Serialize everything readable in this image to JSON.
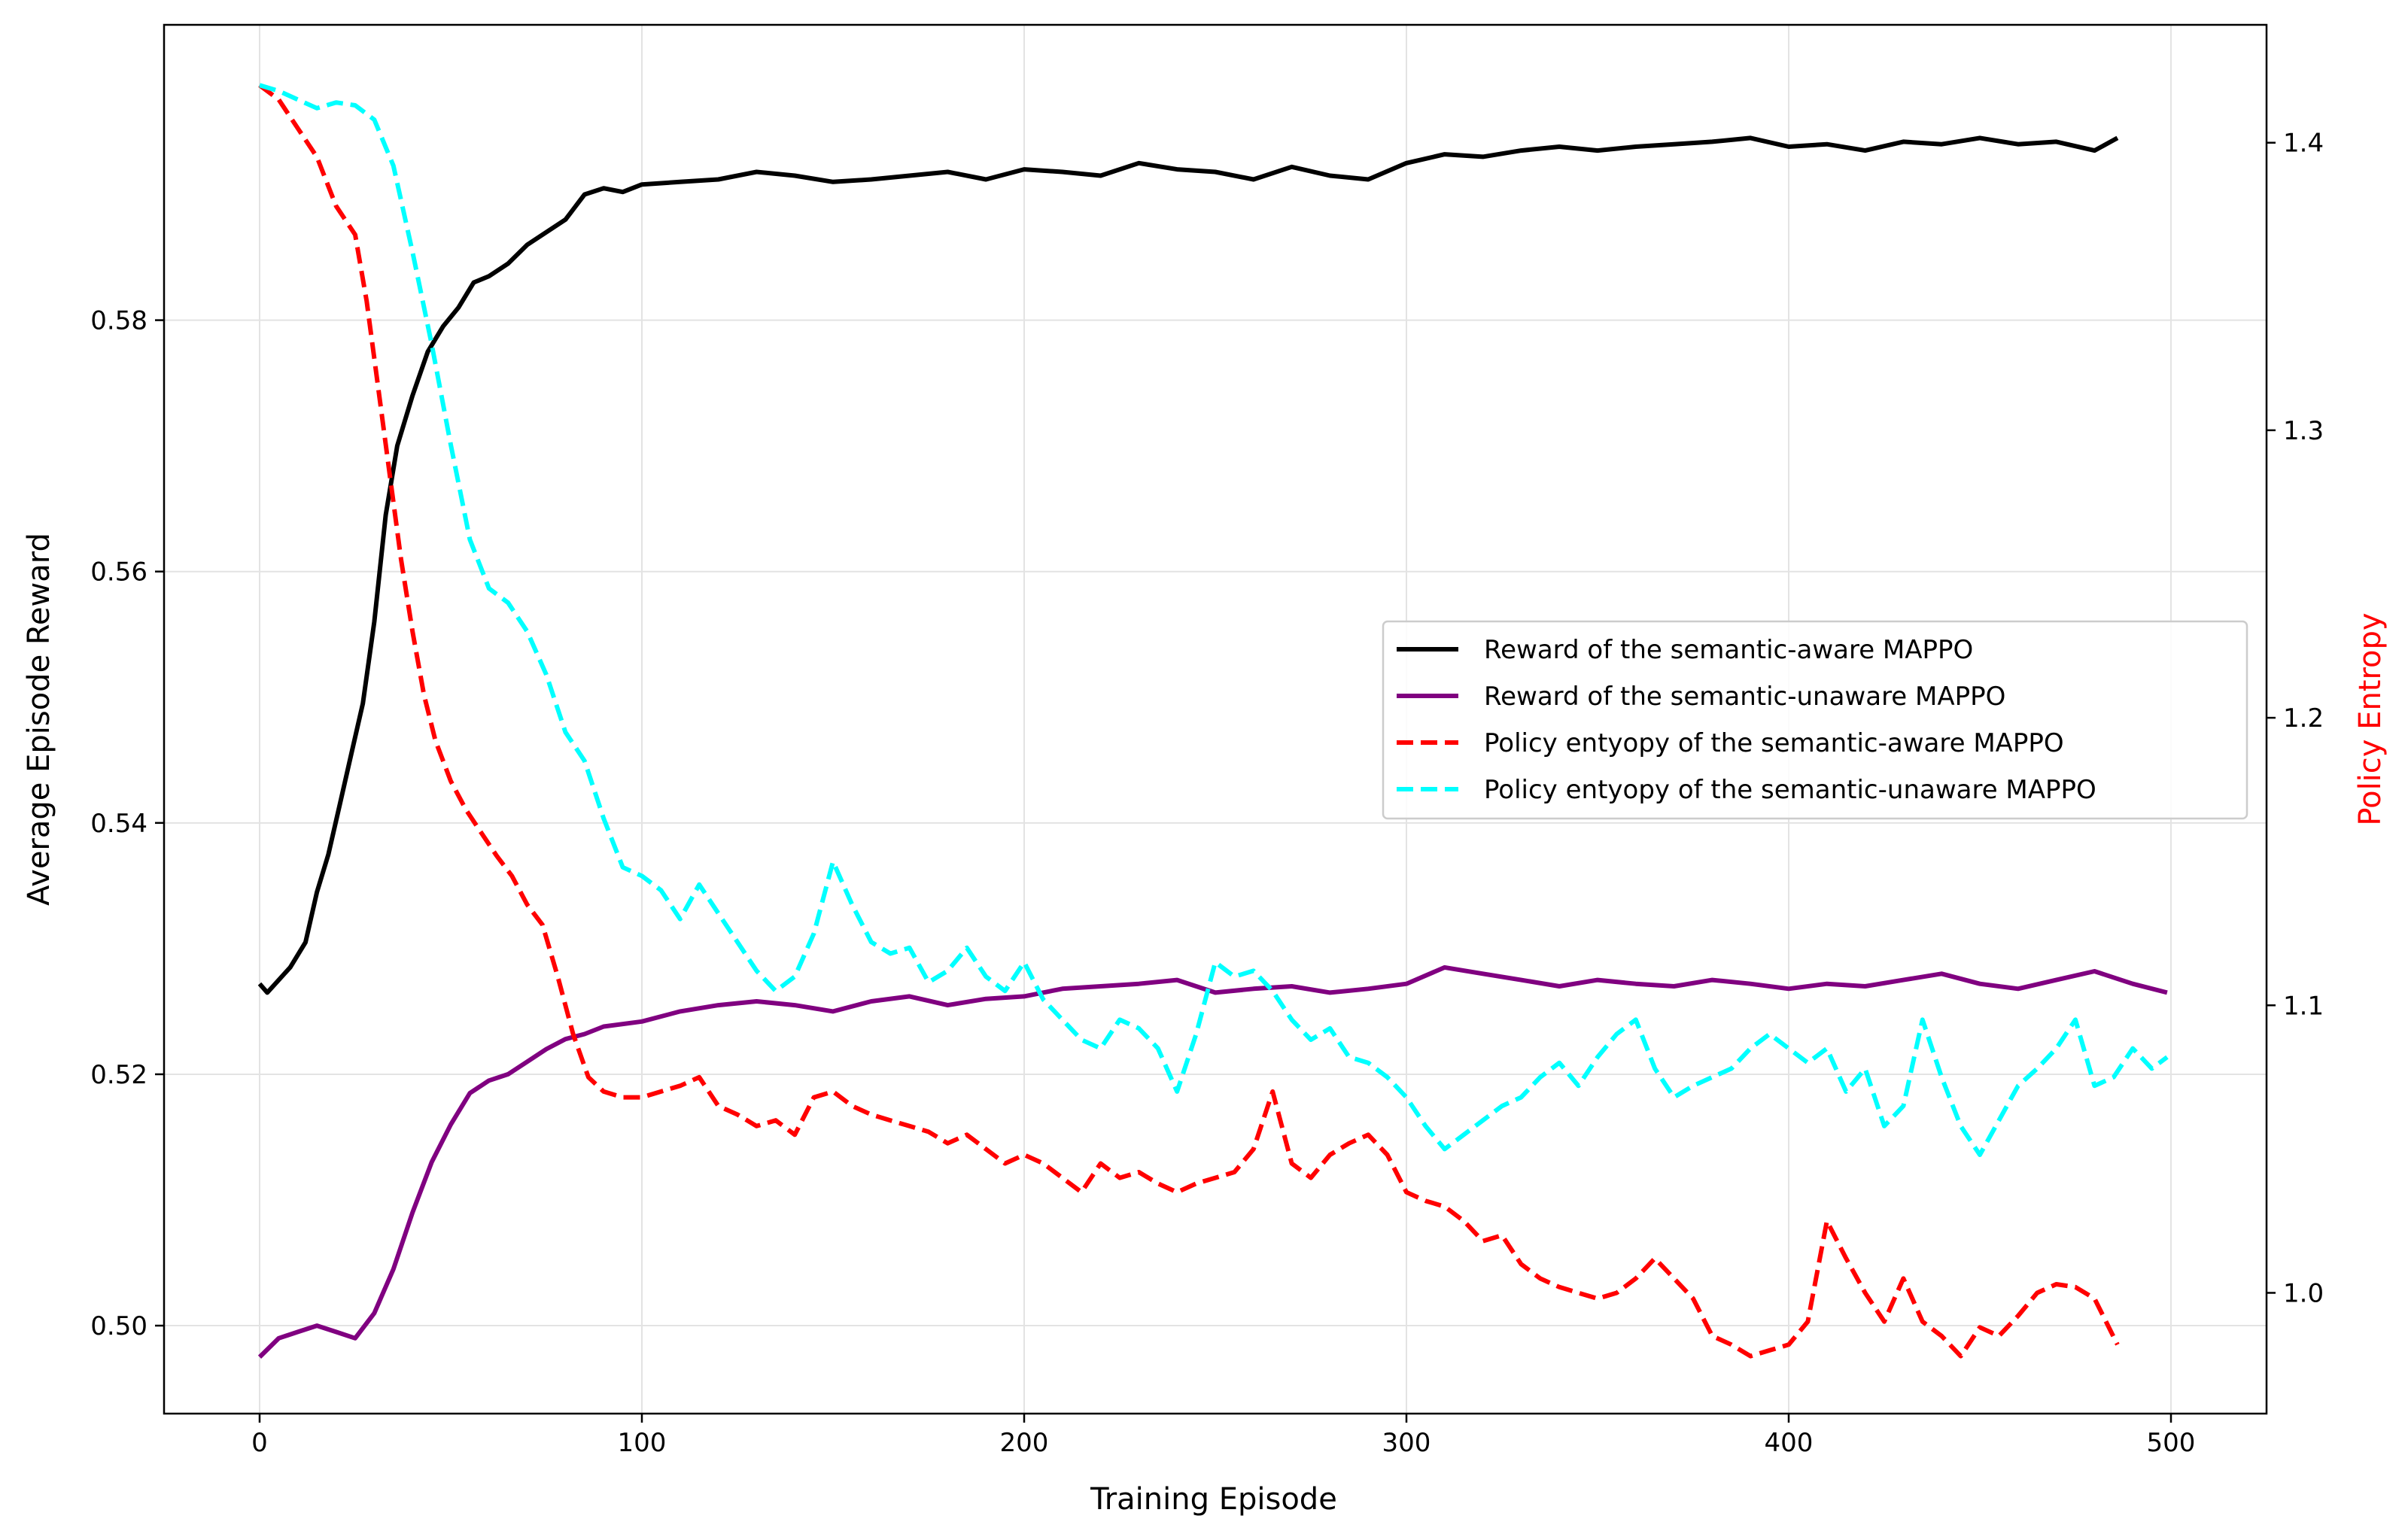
{
  "chart_data": {
    "type": "line",
    "title": "",
    "xlabel": "Training Episode",
    "ylabel_left": "Average Episode Reward",
    "ylabel_right": "Policy Entropy",
    "ylabel_right_color": "#ff0000",
    "xlim": [
      -25,
      525
    ],
    "ylim_left": [
      0.493,
      0.6035
    ],
    "ylim_right": [
      0.958,
      1.441
    ],
    "x_ticks": [
      0,
      100,
      200,
      300,
      400,
      500
    ],
    "x_tick_labels": [
      "0",
      "100",
      "200",
      "300",
      "400",
      "500"
    ],
    "y_left_ticks": [
      0.5,
      0.52,
      0.54,
      0.56,
      0.58
    ],
    "y_left_tick_labels": [
      "0.50",
      "0.52",
      "0.54",
      "0.56",
      "0.58"
    ],
    "y_right_ticks": [
      1.0,
      1.1,
      1.2,
      1.3,
      1.4
    ],
    "y_right_tick_labels": [
      "1.0",
      "1.1",
      "1.2",
      "1.3",
      "1.4"
    ],
    "grid": true,
    "legend_position": "center-right",
    "series": [
      {
        "name": "Reward of the semantic-aware MAPPO",
        "axis": "left",
        "color": "#000000",
        "dash": "solid",
        "x": [
          0,
          2,
          5,
          8,
          12,
          15,
          18,
          21,
          24,
          27,
          30,
          33,
          36,
          40,
          44,
          48,
          52,
          56,
          60,
          65,
          70,
          75,
          80,
          85,
          90,
          95,
          100,
          110,
          120,
          130,
          140,
          150,
          160,
          170,
          180,
          190,
          200,
          210,
          220,
          230,
          240,
          250,
          260,
          270,
          280,
          290,
          300,
          310,
          320,
          330,
          340,
          350,
          360,
          370,
          380,
          390,
          400,
          410,
          420,
          430,
          440,
          450,
          460,
          470,
          480,
          486
        ],
        "y": [
          0.5272,
          0.5265,
          0.5275,
          0.5285,
          0.5305,
          0.5345,
          0.5375,
          0.5415,
          0.5455,
          0.5495,
          0.556,
          0.5645,
          0.57,
          0.574,
          0.5775,
          0.5795,
          0.581,
          0.583,
          0.5835,
          0.5845,
          0.586,
          0.587,
          0.588,
          0.59,
          0.5905,
          0.5902,
          0.5908,
          0.591,
          0.5912,
          0.5918,
          0.5915,
          0.591,
          0.5912,
          0.5915,
          0.5918,
          0.5912,
          0.592,
          0.5918,
          0.5915,
          0.5925,
          0.592,
          0.5918,
          0.5912,
          0.5922,
          0.5915,
          0.5912,
          0.5925,
          0.5932,
          0.593,
          0.5935,
          0.5938,
          0.5935,
          0.5938,
          0.594,
          0.5942,
          0.5945,
          0.5938,
          0.594,
          0.5935,
          0.5942,
          0.594,
          0.5945,
          0.594,
          0.5942,
          0.5935,
          0.5945
        ]
      },
      {
        "name": "Reward of the semantic-unaware MAPPO",
        "axis": "left",
        "color": "#800080",
        "dash": "solid",
        "x": [
          0,
          5,
          10,
          15,
          20,
          25,
          30,
          35,
          40,
          45,
          50,
          55,
          60,
          65,
          70,
          75,
          80,
          85,
          90,
          100,
          110,
          120,
          130,
          140,
          150,
          160,
          170,
          180,
          190,
          200,
          210,
          220,
          230,
          240,
          250,
          260,
          270,
          280,
          290,
          300,
          310,
          320,
          330,
          340,
          350,
          360,
          370,
          380,
          390,
          400,
          410,
          420,
          430,
          440,
          450,
          460,
          470,
          480,
          490,
          499
        ],
        "y": [
          0.4975,
          0.499,
          0.4995,
          0.5,
          0.4995,
          0.499,
          0.501,
          0.5045,
          0.509,
          0.513,
          0.516,
          0.5185,
          0.5195,
          0.52,
          0.521,
          0.522,
          0.5228,
          0.5232,
          0.5238,
          0.5242,
          0.525,
          0.5255,
          0.5258,
          0.5255,
          0.525,
          0.5258,
          0.5262,
          0.5255,
          0.526,
          0.5262,
          0.5268,
          0.527,
          0.5272,
          0.5275,
          0.5265,
          0.5268,
          0.527,
          0.5265,
          0.5268,
          0.5272,
          0.5285,
          0.528,
          0.5275,
          0.527,
          0.5275,
          0.5272,
          0.527,
          0.5275,
          0.5272,
          0.5268,
          0.5272,
          0.527,
          0.5275,
          0.528,
          0.5272,
          0.5268,
          0.5275,
          0.5282,
          0.5272,
          0.5265
        ]
      },
      {
        "name": "Policy entyopy of the semantic-aware MAPPO",
        "axis": "right",
        "color": "#ff0000",
        "dash": "dashed",
        "x": [
          0,
          5,
          10,
          15,
          20,
          25,
          28,
          31,
          34,
          37,
          40,
          43,
          46,
          50,
          54,
          58,
          62,
          66,
          70,
          74,
          78,
          82,
          86,
          90,
          95,
          100,
          105,
          110,
          115,
          120,
          125,
          130,
          135,
          140,
          145,
          150,
          155,
          160,
          165,
          170,
          175,
          180,
          185,
          190,
          195,
          200,
          205,
          210,
          215,
          220,
          225,
          230,
          235,
          240,
          245,
          250,
          255,
          260,
          265,
          270,
          275,
          280,
          285,
          290,
          295,
          300,
          305,
          310,
          315,
          320,
          325,
          330,
          335,
          340,
          345,
          350,
          355,
          360,
          365,
          370,
          375,
          380,
          385,
          390,
          395,
          400,
          405,
          410,
          415,
          420,
          425,
          430,
          435,
          440,
          445,
          450,
          455,
          460,
          465,
          470,
          475,
          480,
          486
        ],
        "y": [
          1.42,
          1.415,
          1.405,
          1.395,
          1.378,
          1.368,
          1.345,
          1.315,
          1.285,
          1.255,
          1.23,
          1.208,
          1.192,
          1.178,
          1.168,
          1.16,
          1.152,
          1.145,
          1.135,
          1.128,
          1.11,
          1.09,
          1.075,
          1.07,
          1.068,
          1.068,
          1.07,
          1.072,
          1.075,
          1.065,
          1.062,
          1.058,
          1.06,
          1.055,
          1.068,
          1.07,
          1.065,
          1.062,
          1.06,
          1.058,
          1.056,
          1.052,
          1.055,
          1.05,
          1.045,
          1.048,
          1.045,
          1.04,
          1.035,
          1.045,
          1.04,
          1.042,
          1.038,
          1.035,
          1.038,
          1.04,
          1.042,
          1.05,
          1.07,
          1.045,
          1.04,
          1.048,
          1.052,
          1.055,
          1.048,
          1.035,
          1.032,
          1.03,
          1.025,
          1.018,
          1.02,
          1.01,
          1.005,
          1.002,
          1.0,
          0.998,
          1.0,
          1.005,
          1.012,
          1.005,
          0.998,
          0.985,
          0.982,
          0.978,
          0.98,
          0.982,
          0.99,
          1.025,
          1.012,
          1.0,
          0.99,
          1.005,
          0.99,
          0.985,
          0.978,
          0.988,
          0.985,
          0.992,
          1.0,
          1.003,
          1.002,
          0.998,
          0.982
        ]
      },
      {
        "name": "Policy entyopy of the semantic-unaware MAPPO",
        "axis": "right",
        "color": "#00ffff",
        "dash": "dashed",
        "x": [
          0,
          5,
          10,
          15,
          20,
          25,
          30,
          35,
          40,
          45,
          50,
          55,
          60,
          65,
          70,
          75,
          80,
          85,
          90,
          95,
          100,
          105,
          110,
          115,
          120,
          125,
          130,
          135,
          140,
          145,
          150,
          155,
          160,
          165,
          170,
          175,
          180,
          185,
          190,
          195,
          200,
          205,
          210,
          215,
          220,
          225,
          230,
          235,
          240,
          245,
          250,
          255,
          260,
          265,
          270,
          275,
          280,
          285,
          290,
          295,
          300,
          305,
          310,
          315,
          320,
          325,
          330,
          335,
          340,
          345,
          350,
          355,
          360,
          365,
          370,
          375,
          380,
          385,
          390,
          395,
          400,
          405,
          410,
          415,
          420,
          425,
          430,
          435,
          440,
          445,
          450,
          455,
          460,
          465,
          470,
          475,
          480,
          485,
          490,
          495,
          499
        ],
        "y": [
          1.42,
          1.418,
          1.415,
          1.412,
          1.414,
          1.413,
          1.408,
          1.392,
          1.362,
          1.33,
          1.295,
          1.262,
          1.245,
          1.24,
          1.23,
          1.215,
          1.195,
          1.185,
          1.165,
          1.148,
          1.145,
          1.14,
          1.13,
          1.142,
          1.132,
          1.122,
          1.112,
          1.105,
          1.11,
          1.125,
          1.15,
          1.135,
          1.122,
          1.118,
          1.12,
          1.108,
          1.112,
          1.12,
          1.11,
          1.105,
          1.115,
          1.102,
          1.095,
          1.088,
          1.085,
          1.095,
          1.092,
          1.085,
          1.07,
          1.09,
          1.115,
          1.11,
          1.112,
          1.105,
          1.095,
          1.088,
          1.092,
          1.082,
          1.08,
          1.075,
          1.068,
          1.058,
          1.05,
          1.055,
          1.06,
          1.065,
          1.068,
          1.075,
          1.08,
          1.072,
          1.082,
          1.09,
          1.095,
          1.078,
          1.068,
          1.072,
          1.075,
          1.078,
          1.085,
          1.09,
          1.085,
          1.08,
          1.085,
          1.07,
          1.078,
          1.058,
          1.065,
          1.095,
          1.075,
          1.058,
          1.048,
          1.06,
          1.072,
          1.078,
          1.085,
          1.095,
          1.072,
          1.075,
          1.085,
          1.078,
          1.082
        ]
      }
    ]
  }
}
